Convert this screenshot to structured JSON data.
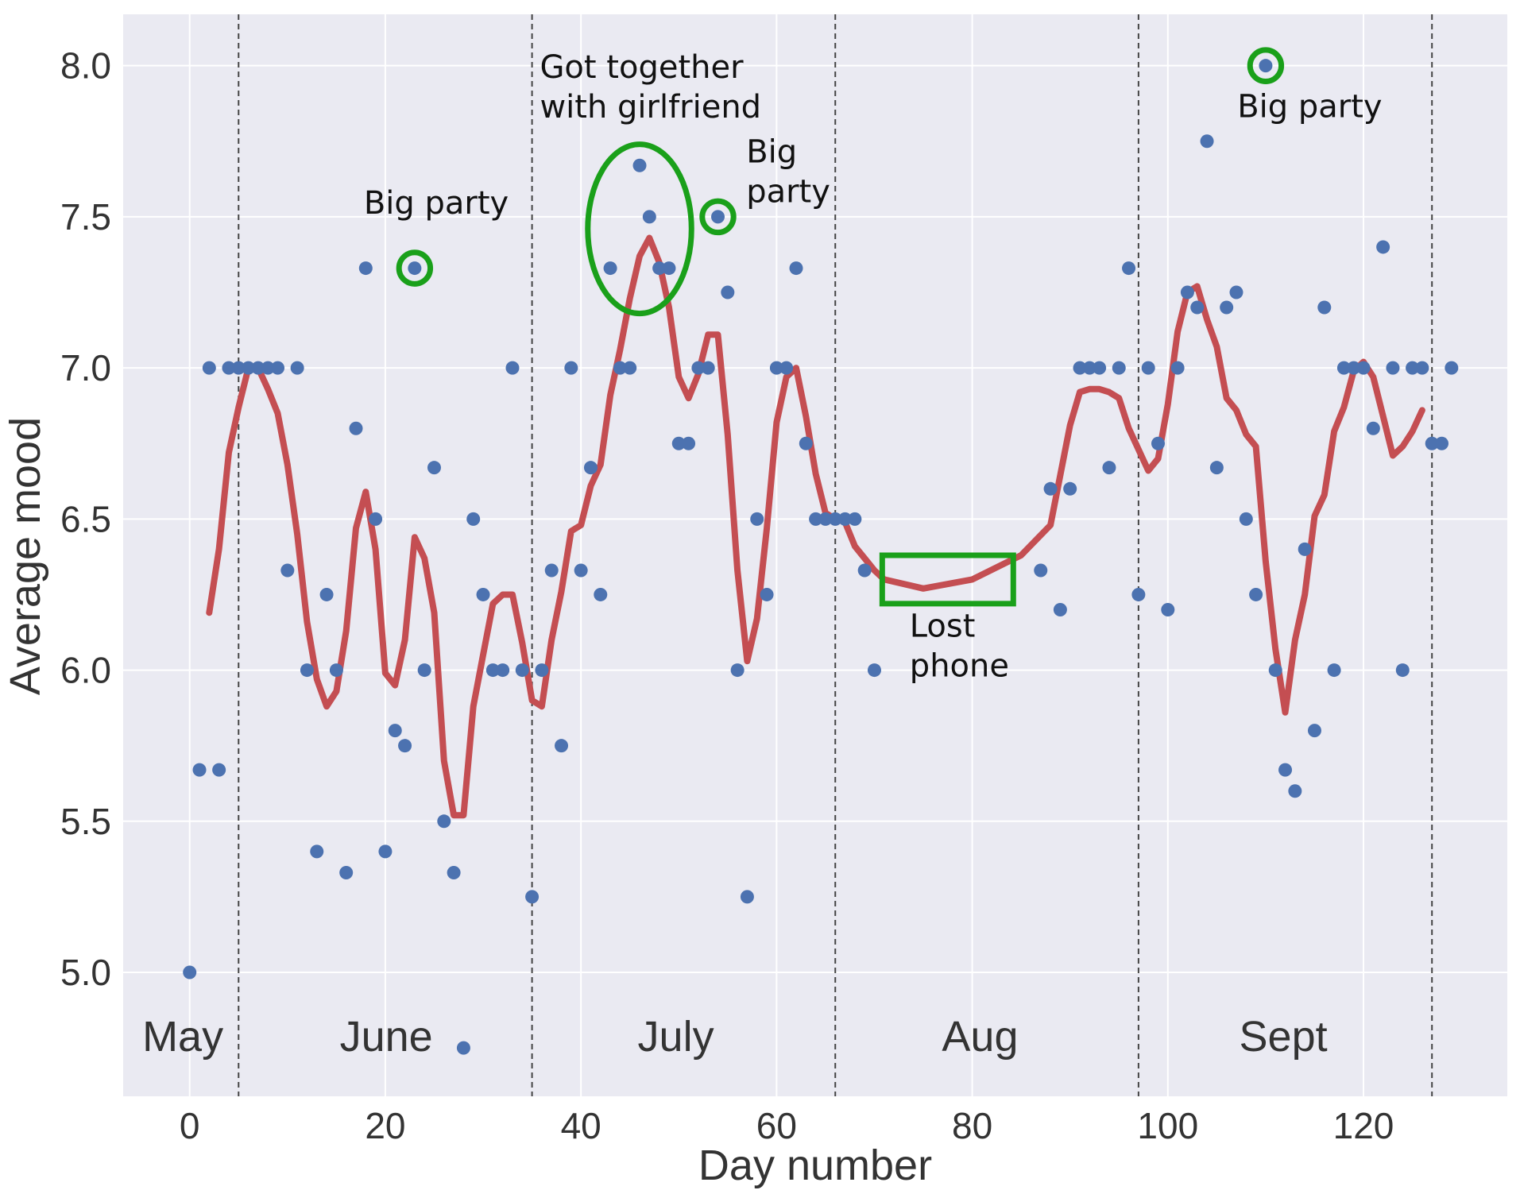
{
  "colors": {
    "plot_background": "#eaeaf2",
    "grid": "#ffffff",
    "points": "#4c72b0",
    "smoothed_line": "#c44e52",
    "annotation": "#1aa01a",
    "month_divider": "#444444"
  },
  "chart_data": {
    "type": "scatter",
    "xlabel": "Day number",
    "ylabel": "Average mood",
    "xlim": [
      -6.8,
      134.7
    ],
    "ylim": [
      4.59,
      8.17
    ],
    "x_ticks": [
      0,
      20,
      40,
      60,
      80,
      100,
      120
    ],
    "x_tick_labels": [
      "0",
      "20",
      "40",
      "60",
      "80",
      "100",
      "120"
    ],
    "y_ticks": [
      5.0,
      5.5,
      6.0,
      6.5,
      7.0,
      7.5,
      8.0
    ],
    "y_tick_labels": [
      "5.0",
      "5.5",
      "6.0",
      "6.5",
      "7.0",
      "7.5",
      "8.0"
    ],
    "grid": true,
    "series": [
      {
        "kind": "scatter",
        "points": [
          [
            0,
            5.0
          ],
          [
            1,
            5.67
          ],
          [
            2,
            7.0
          ],
          [
            3,
            5.67
          ],
          [
            4,
            7.0
          ],
          [
            5,
            7.0
          ],
          [
            6,
            7.0
          ],
          [
            7,
            7.0
          ],
          [
            8,
            7.0
          ],
          [
            9,
            7.0
          ],
          [
            10,
            6.33
          ],
          [
            11,
            7.0
          ],
          [
            12,
            6.0
          ],
          [
            13,
            5.4
          ],
          [
            14,
            6.25
          ],
          [
            15,
            6.0
          ],
          [
            16,
            5.33
          ],
          [
            17,
            6.8
          ],
          [
            18,
            7.33
          ],
          [
            19,
            6.5
          ],
          [
            20,
            5.4
          ],
          [
            21,
            5.8
          ],
          [
            22,
            5.75
          ],
          [
            23,
            7.33
          ],
          [
            24,
            6.0
          ],
          [
            25,
            6.67
          ],
          [
            26,
            5.5
          ],
          [
            27,
            5.33
          ],
          [
            28,
            4.75
          ],
          [
            29,
            6.5
          ],
          [
            30,
            6.25
          ],
          [
            31,
            6.0
          ],
          [
            32,
            6.0
          ],
          [
            33,
            7.0
          ],
          [
            34,
            6.0
          ],
          [
            35,
            5.25
          ],
          [
            36,
            6.0
          ],
          [
            37,
            6.33
          ],
          [
            38,
            5.75
          ],
          [
            39,
            7.0
          ],
          [
            40,
            6.33
          ],
          [
            41,
            6.67
          ],
          [
            42,
            6.25
          ],
          [
            43,
            7.33
          ],
          [
            44,
            7.0
          ],
          [
            45,
            7.0
          ],
          [
            46,
            7.67
          ],
          [
            47,
            7.5
          ],
          [
            48,
            7.33
          ],
          [
            49,
            7.33
          ],
          [
            50,
            6.75
          ],
          [
            51,
            6.75
          ],
          [
            52,
            7.0
          ],
          [
            53,
            7.0
          ],
          [
            54,
            7.5
          ],
          [
            55,
            7.25
          ],
          [
            56,
            6.0
          ],
          [
            57,
            5.25
          ],
          [
            58,
            6.5
          ],
          [
            59,
            6.25
          ],
          [
            60,
            7.0
          ],
          [
            61,
            7.0
          ],
          [
            62,
            7.33
          ],
          [
            63,
            6.75
          ],
          [
            64,
            6.5
          ],
          [
            65,
            6.5
          ],
          [
            66,
            6.5
          ],
          [
            67,
            6.5
          ],
          [
            68,
            6.5
          ],
          [
            69,
            6.33
          ],
          [
            70,
            6.0
          ],
          [
            87,
            6.33
          ],
          [
            88,
            6.6
          ],
          [
            89,
            6.2
          ],
          [
            90,
            6.6
          ],
          [
            91,
            7.0
          ],
          [
            92,
            7.0
          ],
          [
            93,
            7.0
          ],
          [
            94,
            6.67
          ],
          [
            95,
            7.0
          ],
          [
            96,
            7.33
          ],
          [
            97,
            6.25
          ],
          [
            98,
            7.0
          ],
          [
            99,
            6.75
          ],
          [
            100,
            6.2
          ],
          [
            101,
            7.0
          ],
          [
            102,
            7.25
          ],
          [
            103,
            7.2
          ],
          [
            104,
            7.75
          ],
          [
            105,
            6.67
          ],
          [
            106,
            7.2
          ],
          [
            107,
            7.25
          ],
          [
            108,
            6.5
          ],
          [
            109,
            6.25
          ],
          [
            110,
            8.0
          ],
          [
            111,
            6.0
          ],
          [
            112,
            5.67
          ],
          [
            113,
            5.6
          ],
          [
            114,
            6.4
          ],
          [
            115,
            5.8
          ],
          [
            116,
            7.2
          ],
          [
            117,
            6.0
          ],
          [
            118,
            7.0
          ],
          [
            119,
            7.0
          ],
          [
            120,
            7.0
          ],
          [
            121,
            6.8
          ],
          [
            122,
            7.4
          ],
          [
            123,
            7.0
          ],
          [
            124,
            6.0
          ],
          [
            125,
            7.0
          ],
          [
            126,
            7.0
          ],
          [
            127,
            6.75
          ],
          [
            128,
            6.75
          ],
          [
            129,
            7.0
          ]
        ]
      },
      {
        "kind": "line",
        "points": [
          [
            2,
            6.19
          ],
          [
            3,
            6.4
          ],
          [
            4,
            6.72
          ],
          [
            5,
            6.87
          ],
          [
            6,
            7.0
          ],
          [
            7,
            7.0
          ],
          [
            8,
            6.93
          ],
          [
            9,
            6.85
          ],
          [
            10,
            6.68
          ],
          [
            11,
            6.45
          ],
          [
            12,
            6.16
          ],
          [
            13,
            5.97
          ],
          [
            14,
            5.88
          ],
          [
            15,
            5.93
          ],
          [
            16,
            6.13
          ],
          [
            17,
            6.47
          ],
          [
            18,
            6.59
          ],
          [
            19,
            6.4
          ],
          [
            20,
            5.99
          ],
          [
            21,
            5.95
          ],
          [
            22,
            6.1
          ],
          [
            23,
            6.44
          ],
          [
            24,
            6.37
          ],
          [
            25,
            6.19
          ],
          [
            26,
            5.7
          ],
          [
            27,
            5.52
          ],
          [
            28,
            5.52
          ],
          [
            29,
            5.88
          ],
          [
            30,
            6.05
          ],
          [
            31,
            6.22
          ],
          [
            32,
            6.25
          ],
          [
            33,
            6.25
          ],
          [
            34,
            6.09
          ],
          [
            35,
            5.9
          ],
          [
            36,
            5.88
          ],
          [
            37,
            6.1
          ],
          [
            38,
            6.26
          ],
          [
            39,
            6.46
          ],
          [
            40,
            6.48
          ],
          [
            41,
            6.61
          ],
          [
            42,
            6.68
          ],
          [
            43,
            6.91
          ],
          [
            44,
            7.06
          ],
          [
            45,
            7.23
          ],
          [
            46,
            7.37
          ],
          [
            47,
            7.43
          ],
          [
            48,
            7.35
          ],
          [
            49,
            7.2
          ],
          [
            50,
            6.97
          ],
          [
            51,
            6.9
          ],
          [
            52,
            6.98
          ],
          [
            53,
            7.11
          ],
          [
            54,
            7.11
          ],
          [
            55,
            6.78
          ],
          [
            56,
            6.33
          ],
          [
            57,
            6.03
          ],
          [
            58,
            6.17
          ],
          [
            59,
            6.47
          ],
          [
            60,
            6.82
          ],
          [
            61,
            6.97
          ],
          [
            62,
            7.0
          ],
          [
            63,
            6.84
          ],
          [
            64,
            6.65
          ],
          [
            65,
            6.52
          ],
          [
            66,
            6.5
          ],
          [
            67,
            6.49
          ],
          [
            68,
            6.41
          ],
          [
            69,
            6.37
          ],
          [
            70,
            6.33
          ],
          [
            71,
            6.3
          ],
          [
            75,
            6.27
          ],
          [
            80,
            6.3
          ],
          [
            85,
            6.38
          ],
          [
            88,
            6.48
          ],
          [
            90,
            6.81
          ],
          [
            91,
            6.92
          ],
          [
            92,
            6.93
          ],
          [
            93,
            6.93
          ],
          [
            94,
            6.92
          ],
          [
            95,
            6.9
          ],
          [
            96,
            6.8
          ],
          [
            97,
            6.73
          ],
          [
            98,
            6.66
          ],
          [
            99,
            6.7
          ],
          [
            100,
            6.88
          ],
          [
            101,
            7.12
          ],
          [
            102,
            7.25
          ],
          [
            103,
            7.27
          ],
          [
            104,
            7.16
          ],
          [
            105,
            7.07
          ],
          [
            106,
            6.9
          ],
          [
            107,
            6.86
          ],
          [
            108,
            6.78
          ],
          [
            109,
            6.74
          ],
          [
            110,
            6.36
          ],
          [
            111,
            6.07
          ],
          [
            112,
            5.86
          ],
          [
            113,
            6.1
          ],
          [
            114,
            6.25
          ],
          [
            115,
            6.51
          ],
          [
            116,
            6.58
          ],
          [
            117,
            6.79
          ],
          [
            118,
            6.87
          ],
          [
            119,
            6.99
          ],
          [
            120,
            7.02
          ],
          [
            121,
            6.97
          ],
          [
            122,
            6.84
          ],
          [
            123,
            6.71
          ],
          [
            124,
            6.74
          ],
          [
            125,
            6.79
          ],
          [
            126,
            6.86
          ]
        ]
      }
    ],
    "month_dividers": [
      5,
      35,
      66,
      97,
      127
    ],
    "month_labels": [
      {
        "text": "May",
        "x": -0.7,
        "y": 4.74
      },
      {
        "text": "June",
        "x": 20.1,
        "y": 4.74
      },
      {
        "text": "July",
        "x": 49.7,
        "y": 4.74
      },
      {
        "text": "Aug",
        "x": 80.8,
        "y": 4.74
      },
      {
        "text": "Sept",
        "x": 111.8,
        "y": 4.74
      }
    ],
    "annotations": [
      {
        "lines": [
          "Big party"
        ],
        "text_x": 17.8,
        "text_y": 7.51,
        "shape": "circle",
        "cx": 23,
        "cy": 7.33,
        "rx": 1.6,
        "ry": 0.052
      },
      {
        "lines": [
          "Got together",
          "with girlfriend"
        ],
        "text_x": 35.8,
        "text_y": 7.96,
        "shape": "ellipse",
        "cx": 46,
        "cy": 7.46,
        "rx": 5.3,
        "ry": 0.28
      },
      {
        "lines": [
          "Big",
          "party"
        ],
        "text_x": 56.9,
        "text_y": 7.68,
        "shape": "circle",
        "cx": 54,
        "cy": 7.5,
        "rx": 1.6,
        "ry": 0.052
      },
      {
        "lines": [
          "Lost",
          "phone"
        ],
        "text_x": 73.6,
        "text_y": 6.11,
        "shape": "rect",
        "x0": 70.8,
        "x1": 84.2,
        "y0": 6.22,
        "y1": 6.38
      },
      {
        "lines": [
          "Big party"
        ],
        "text_x": 107.1,
        "text_y": 7.83,
        "shape": "circle",
        "cx": 110,
        "cy": 8.0,
        "rx": 1.6,
        "ry": 0.052
      }
    ]
  }
}
